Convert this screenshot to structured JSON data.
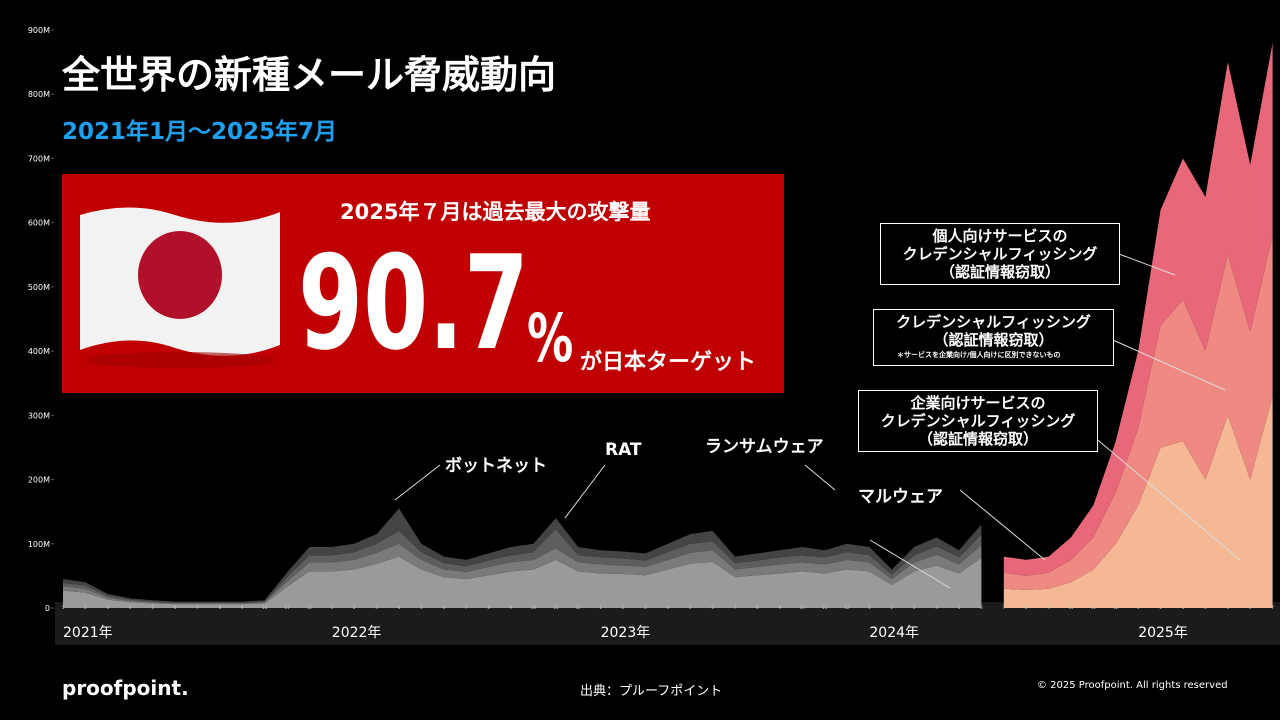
{
  "header": {
    "title": "全世界の新種メール脅威動向",
    "subtitle": "2021年1月～2025年7月"
  },
  "callout": {
    "headline": "2025年７月は過去最大の攻撃量",
    "stat_value": "90.7",
    "stat_unit": "%",
    "stat_text": "が日本ターゲット"
  },
  "chart_data": {
    "type": "area",
    "stacked": true,
    "categories": [
      "1",
      "2",
      "3",
      "4",
      "5",
      "6",
      "7",
      "8",
      "9",
      "10",
      "11",
      "12",
      "1",
      "2",
      "3",
      "4",
      "5",
      "6",
      "7",
      "8",
      "9",
      "10",
      "11",
      "12",
      "1",
      "2",
      "3",
      "4",
      "5",
      "6",
      "7",
      "8",
      "9",
      "10",
      "11",
      "12",
      "1",
      "2",
      "3",
      "4",
      "5",
      "6",
      "7",
      "8",
      "9",
      "10",
      "11",
      "12",
      "1",
      "2",
      "3",
      "4",
      "5",
      "6",
      "7"
    ],
    "year_labels": [
      "2021年",
      "2022年",
      "2023年",
      "2024年",
      "2025年"
    ],
    "ylim": [
      0,
      900
    ],
    "yticks": [
      0,
      {
        "value": 100,
        "label": "100M"
      },
      {
        "value": 200,
        "label": "200M"
      },
      {
        "value": 300,
        "label": "300M"
      },
      {
        "value": 400,
        "label": "400M"
      },
      {
        "value": 500,
        "label": "500M"
      },
      {
        "value": 600,
        "label": "600M"
      },
      {
        "value": 700,
        "label": "700M"
      },
      {
        "value": 800,
        "label": "800M"
      },
      {
        "value": 900,
        "label": "900M"
      }
    ],
    "note": "＊サービスを企業向け/個人向けに区別できないもの",
    "series": [
      {
        "name": "マルウェア",
        "color": "#9a9a9a",
        "values": [
          27,
          24,
          13,
          9,
          7,
          6,
          6,
          6,
          6,
          7,
          33,
          57,
          57,
          60,
          69,
          80,
          60,
          48,
          45,
          51,
          57,
          60,
          75,
          57,
          54,
          53,
          51,
          60,
          69,
          72,
          48,
          51,
          54,
          57,
          54,
          60,
          57,
          36,
          57,
          66,
          54,
          78,
          null,
          null,
          null,
          null,
          null,
          null,
          null,
          null,
          null,
          null,
          null,
          null,
          null
        ]
      },
      {
        "name": "ランサムウェア",
        "color": "#7a7a7a",
        "values": [
          7,
          6,
          3,
          2,
          2,
          1,
          1,
          1,
          1,
          2,
          8,
          14,
          14,
          15,
          17,
          20,
          15,
          12,
          11,
          13,
          14,
          15,
          18,
          14,
          14,
          13,
          13,
          15,
          17,
          18,
          12,
          13,
          14,
          14,
          14,
          15,
          14,
          9,
          14,
          17,
          14,
          20,
          null,
          null,
          null,
          null,
          null,
          null,
          null,
          null,
          null,
          null,
          null,
          null,
          null
        ]
      },
      {
        "name": "RAT",
        "color": "#5e5e5e",
        "values": [
          5,
          5,
          3,
          2,
          1,
          1,
          1,
          1,
          1,
          1,
          7,
          11,
          11,
          12,
          14,
          20,
          12,
          10,
          9,
          10,
          11,
          12,
          30,
          11,
          11,
          11,
          10,
          12,
          14,
          14,
          10,
          10,
          11,
          11,
          11,
          12,
          11,
          7,
          11,
          13,
          11,
          16,
          null,
          null,
          null,
          null,
          null,
          null,
          null,
          null,
          null,
          null,
          null,
          null,
          null
        ]
      },
      {
        "name": "ボットネット",
        "color": "#444444",
        "values": [
          6,
          5,
          3,
          2,
          2,
          2,
          2,
          2,
          2,
          2,
          7,
          13,
          13,
          13,
          15,
          35,
          13,
          10,
          10,
          11,
          13,
          13,
          17,
          13,
          11,
          11,
          11,
          13,
          15,
          16,
          10,
          11,
          11,
          13,
          11,
          13,
          13,
          8,
          13,
          14,
          11,
          16,
          null,
          null,
          null,
          null,
          null,
          null,
          null,
          null,
          null,
          null,
          null,
          null,
          null
        ]
      },
      {
        "name": "企業向けサービスの\nクレデンシャルフィッシング\n（認証情報窃取）",
        "color": "#f5b894",
        "values": [
          null,
          null,
          null,
          null,
          null,
          null,
          null,
          null,
          null,
          null,
          null,
          null,
          null,
          null,
          null,
          null,
          null,
          null,
          null,
          null,
          null,
          null,
          null,
          null,
          null,
          null,
          null,
          null,
          null,
          null,
          null,
          null,
          null,
          null,
          null,
          null,
          null,
          null,
          null,
          null,
          null,
          null,
          30,
          28,
          30,
          40,
          60,
          100,
          160,
          250,
          260,
          200,
          300,
          200,
          330
        ]
      },
      {
        "name": "クレデンシャルフィッシング\n（認証情報窃取）",
        "color": "#ee8a82",
        "values": [
          null,
          null,
          null,
          null,
          null,
          null,
          null,
          null,
          null,
          null,
          null,
          null,
          null,
          null,
          null,
          null,
          null,
          null,
          null,
          null,
          null,
          null,
          null,
          null,
          null,
          null,
          null,
          null,
          null,
          null,
          null,
          null,
          null,
          null,
          null,
          null,
          null,
          null,
          null,
          null,
          null,
          null,
          25,
          22,
          25,
          35,
          50,
          80,
          120,
          190,
          220,
          200,
          250,
          230,
          250
        ]
      },
      {
        "name": "個人向けサービスの\nクレデンシャルフィッシング\n（認証情報窃取）",
        "color": "#e8687a",
        "values": [
          null,
          null,
          null,
          null,
          null,
          null,
          null,
          null,
          null,
          null,
          null,
          null,
          null,
          null,
          null,
          null,
          null,
          null,
          null,
          null,
          null,
          null,
          null,
          null,
          null,
          null,
          null,
          null,
          null,
          null,
          null,
          null,
          null,
          null,
          null,
          null,
          null,
          null,
          null,
          null,
          null,
          null,
          25,
          25,
          25,
          35,
          50,
          80,
          120,
          180,
          220,
          240,
          300,
          260,
          300
        ]
      }
    ]
  },
  "footer": {
    "logo": "proofpoint.",
    "source": "出典：プルーフポイント",
    "copyright": "© 2025 Proofpoint. All rights reserved"
  }
}
